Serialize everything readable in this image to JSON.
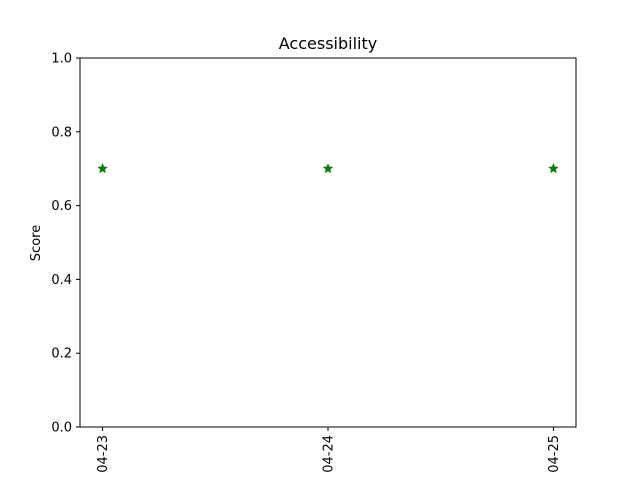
{
  "chart_data": {
    "type": "scatter",
    "title": "Accessibility",
    "xlabel": "",
    "ylabel": "Score",
    "x": [
      "04-23",
      "04-24",
      "04-25"
    ],
    "y": [
      0.7,
      0.7,
      0.7
    ],
    "ylim": [
      0,
      1
    ],
    "yticks": [
      "0.0",
      "0.2",
      "0.4",
      "0.6",
      "0.8",
      "1.0"
    ],
    "ytick_values": [
      0,
      0.2,
      0.4,
      0.6,
      0.8,
      1.0
    ],
    "marker": "star",
    "marker_color": "#008000",
    "grid": false,
    "legend": "none"
  }
}
